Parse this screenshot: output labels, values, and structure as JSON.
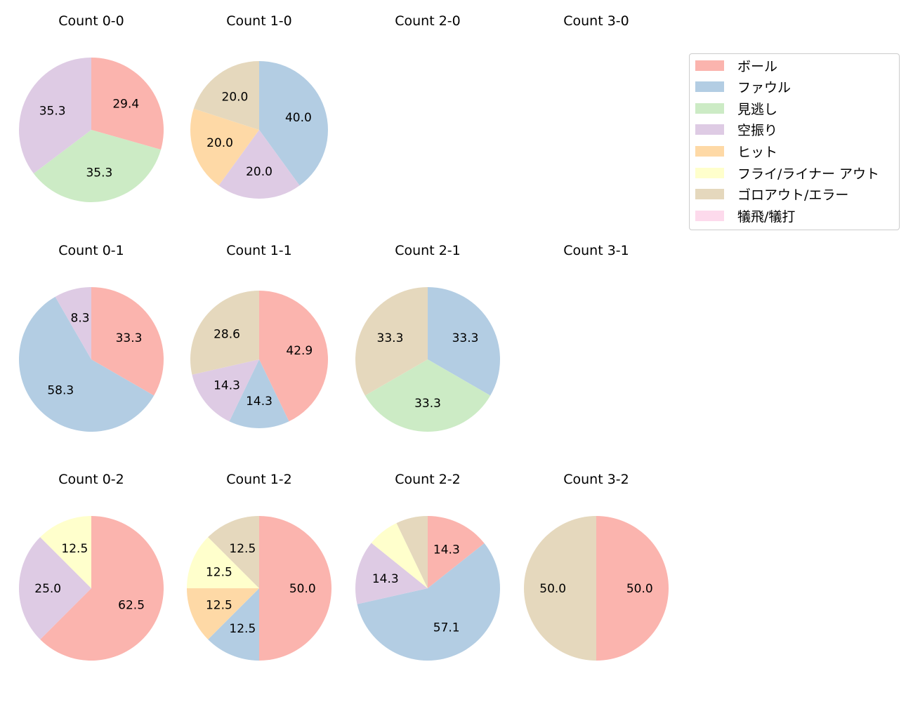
{
  "categories": [
    "ボール",
    "ファウル",
    "見逃し",
    "空振り",
    "ヒット",
    "フライ/ライナー アウト",
    "ゴロアウト/エラー",
    "犠飛/犠打"
  ],
  "colors": [
    "#fbb4ae",
    "#b3cde3",
    "#ccebc5",
    "#decbe4",
    "#fed9a6",
    "#ffffcc",
    "#e5d8bd",
    "#fddaec"
  ],
  "chart_data": [
    {
      "type": "pie",
      "title": "Count 0-0",
      "slices": [
        {
          "category": "ボール",
          "value": 29.4,
          "label": "29.4"
        },
        {
          "category": "見逃し",
          "value": 35.3,
          "label": "35.3"
        },
        {
          "category": "空振り",
          "value": 35.3,
          "label": "35.3"
        }
      ]
    },
    {
      "type": "pie",
      "title": "Count 1-0",
      "slices": [
        {
          "category": "ファウル",
          "value": 40.0,
          "label": "40.0"
        },
        {
          "category": "空振り",
          "value": 20.0,
          "label": "20.0"
        },
        {
          "category": "ヒット",
          "value": 20.0,
          "label": "20.0"
        },
        {
          "category": "ゴロアウト/エラー",
          "value": 20.0,
          "label": "20.0"
        }
      ]
    },
    {
      "type": "pie",
      "title": "Count 2-0",
      "slices": []
    },
    {
      "type": "pie",
      "title": "Count 3-0",
      "slices": []
    },
    {
      "type": "pie",
      "title": "Count 0-1",
      "slices": [
        {
          "category": "ボール",
          "value": 33.3,
          "label": "33.3"
        },
        {
          "category": "ファウル",
          "value": 58.3,
          "label": "58.3"
        },
        {
          "category": "空振り",
          "value": 8.3,
          "label": "8.3"
        }
      ]
    },
    {
      "type": "pie",
      "title": "Count 1-1",
      "slices": [
        {
          "category": "ボール",
          "value": 42.9,
          "label": "42.9"
        },
        {
          "category": "ファウル",
          "value": 14.3,
          "label": "14.3"
        },
        {
          "category": "空振り",
          "value": 14.3,
          "label": "14.3"
        },
        {
          "category": "ゴロアウト/エラー",
          "value": 28.6,
          "label": "28.6"
        }
      ]
    },
    {
      "type": "pie",
      "title": "Count 2-1",
      "slices": [
        {
          "category": "ファウル",
          "value": 33.3,
          "label": "33.3"
        },
        {
          "category": "見逃し",
          "value": 33.3,
          "label": "33.3"
        },
        {
          "category": "ゴロアウト/エラー",
          "value": 33.3,
          "label": "33.3"
        }
      ]
    },
    {
      "type": "pie",
      "title": "Count 3-1",
      "slices": []
    },
    {
      "type": "pie",
      "title": "Count 0-2",
      "slices": [
        {
          "category": "ボール",
          "value": 62.5,
          "label": "62.5"
        },
        {
          "category": "空振り",
          "value": 25.0,
          "label": "25.0"
        },
        {
          "category": "フライ/ライナー アウト",
          "value": 12.5,
          "label": "12.5"
        }
      ]
    },
    {
      "type": "pie",
      "title": "Count 1-2",
      "slices": [
        {
          "category": "ボール",
          "value": 50.0,
          "label": "50.0"
        },
        {
          "category": "ファウル",
          "value": 12.5,
          "label": "12.5"
        },
        {
          "category": "ヒット",
          "value": 12.5,
          "label": "12.5"
        },
        {
          "category": "フライ/ライナー アウト",
          "value": 12.5,
          "label": "12.5"
        },
        {
          "category": "ゴロアウト/エラー",
          "value": 12.5,
          "label": "12.5"
        }
      ]
    },
    {
      "type": "pie",
      "title": "Count 2-2",
      "slices": [
        {
          "category": "ボール",
          "value": 14.3,
          "label": "14.3"
        },
        {
          "category": "ファウル",
          "value": 57.1,
          "label": "57.1"
        },
        {
          "category": "空振り",
          "value": 14.3,
          "label": "14.3"
        },
        {
          "category": "フライ/ライナー アウト",
          "value": 7.1,
          "label": ""
        },
        {
          "category": "ゴロアウト/エラー",
          "value": 7.1,
          "label": ""
        }
      ]
    },
    {
      "type": "pie",
      "title": "Count 3-2",
      "slices": [
        {
          "category": "ボール",
          "value": 50.0,
          "label": "50.0"
        },
        {
          "category": "ゴロアウト/エラー",
          "value": 50.0,
          "label": "50.0"
        }
      ]
    }
  ],
  "legend_position": "top-right"
}
